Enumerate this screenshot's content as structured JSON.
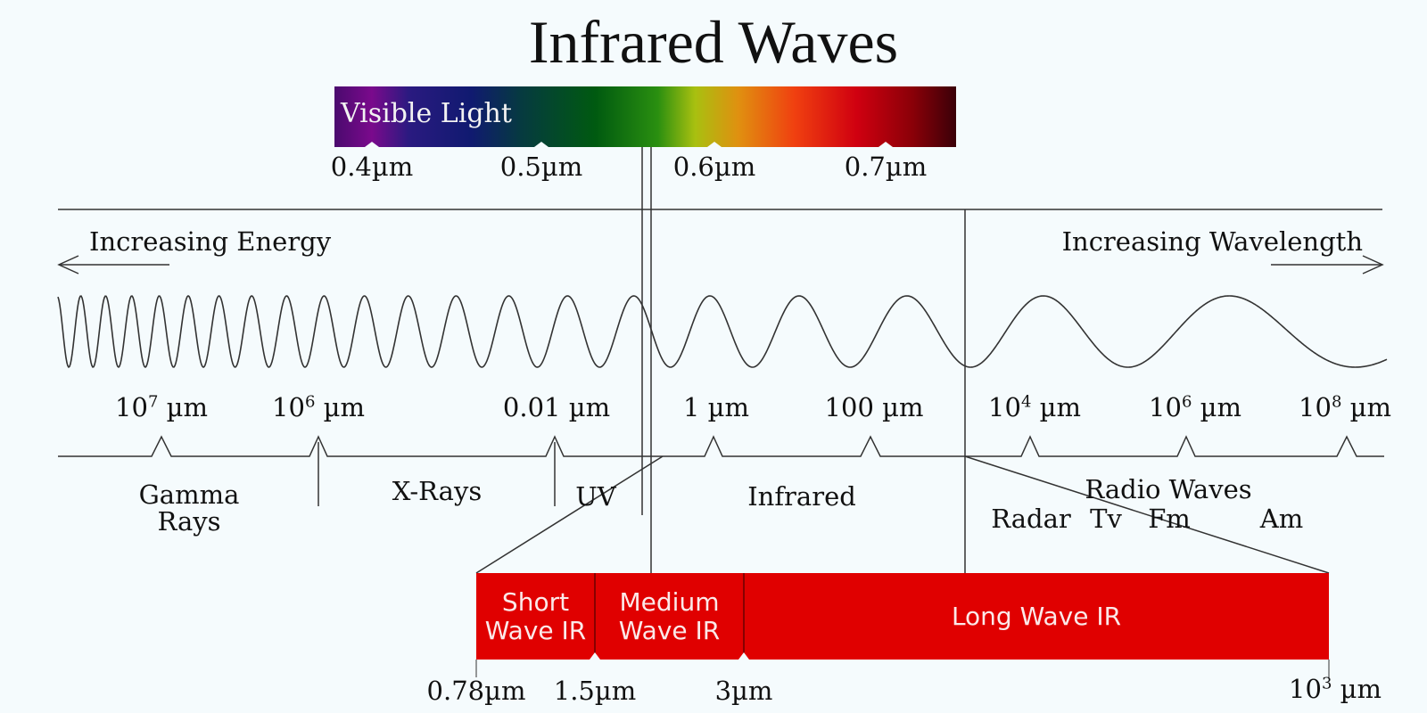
{
  "title": "Infrared Waves",
  "visible_light": {
    "label": "Visible Light",
    "ticks": [
      "0.4µm",
      "0.5µm",
      "0.6µm",
      "0.7µm"
    ]
  },
  "directions": {
    "left": "Increasing Energy",
    "right": "Increasing Wavelength"
  },
  "scale": {
    "t1": {
      "base": "10",
      "exp": "7",
      "unit": " µm"
    },
    "t2": {
      "base": "10",
      "exp": "6",
      "unit": " µm"
    },
    "t3": "0.01 µm",
    "t4": "1 µm",
    "t5": "100 µm",
    "t6": {
      "base": "10",
      "exp": "4",
      "unit": " µm"
    },
    "t7": {
      "base": "10",
      "exp": "6",
      "unit": " µm"
    },
    "t8": {
      "base": "10",
      "exp": "8",
      "unit": " µm"
    }
  },
  "bands": {
    "gamma_line1": "Gamma",
    "gamma_line2": "Rays",
    "xrays": "X-Rays",
    "uv": "UV",
    "infrared": "Infrared",
    "radio": "Radio Waves",
    "radar": "Radar",
    "tv": "Tv",
    "fm": "Fm",
    "am": "Am"
  },
  "ir_bands": {
    "short_line1": "Short",
    "short_line2": "Wave IR",
    "medium_line1": "Medium",
    "medium_line2": "Wave IR",
    "long": "Long Wave IR"
  },
  "ir_ticks": {
    "a": "0.78µm",
    "b": "1.5µm",
    "c": "3µm",
    "d": {
      "base": "10",
      "exp": "3",
      "unit": " µm"
    }
  },
  "colors": {
    "ir_red": "#e00000",
    "line": "#333333"
  }
}
